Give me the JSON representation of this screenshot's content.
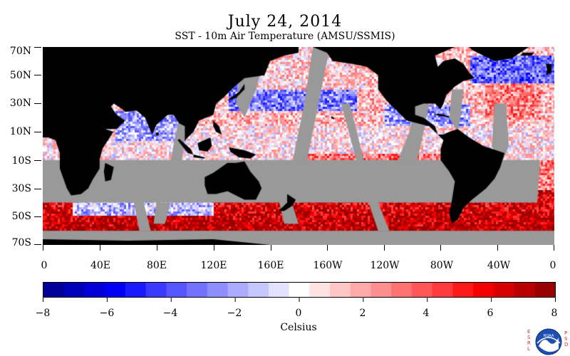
{
  "title": "July 24, 2014",
  "subtitle": "SST - 10m Air Temperature (AMSU/SSMIS)",
  "latitude_labels": [
    "70N",
    "50N",
    "30N",
    "10N",
    "10S",
    "30S",
    "50S",
    "70S"
  ],
  "longitude_labels": [
    "0",
    "40E",
    "80E",
    "120E",
    "160E",
    "160W",
    "120W",
    "80W",
    "40W",
    "0"
  ],
  "colorbar": {
    "min": -8,
    "max": 8,
    "tick_labels": [
      "−8",
      "−6",
      "−4",
      "−2",
      "0",
      "2",
      "4",
      "6",
      "8"
    ],
    "unit_label": "Celsius",
    "colors": [
      "#000099",
      "#0000b8",
      "#0000d6",
      "#0000f5",
      "#1a1aff",
      "#3a3aff",
      "#5656ff",
      "#7272ff",
      "#8e8eff",
      "#aaaaff",
      "#c6c6ff",
      "#e2e2ff",
      "#ffffff",
      "#ffe2e2",
      "#ffc6c6",
      "#ffaaaa",
      "#ff8e8e",
      "#ff7272",
      "#ff5656",
      "#ff3a3a",
      "#ff1a1a",
      "#f50000",
      "#d60000",
      "#b80000",
      "#990000"
    ]
  },
  "logo": {
    "left_letters": "ESRL",
    "right_letters": "PSD",
    "badge_text": "NOAA"
  },
  "map_colors": {
    "land": "#000000",
    "no_data": "#999999"
  }
}
